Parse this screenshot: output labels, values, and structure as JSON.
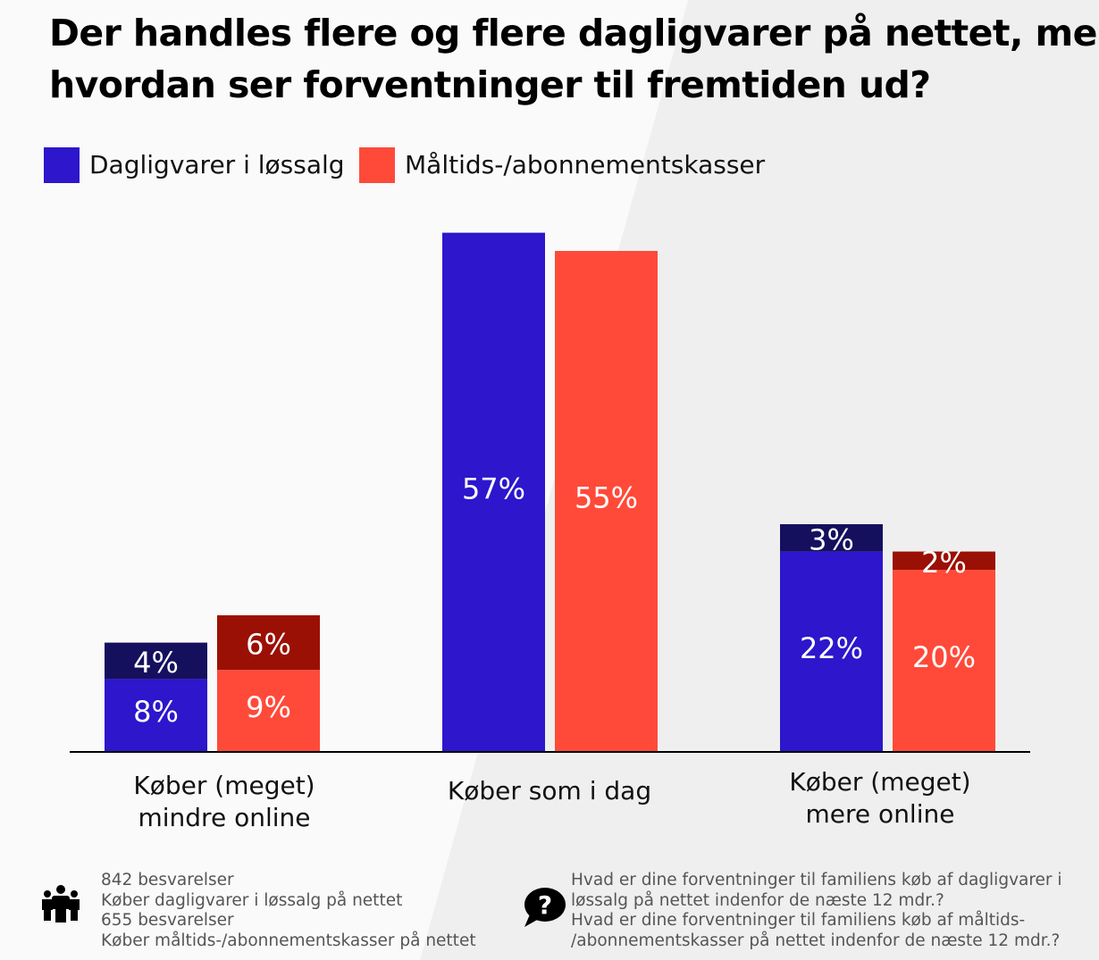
{
  "title": {
    "line1": "Der handles flere og flere dagligvarer på nettet, men",
    "line2": "hvordan ser forventninger til fremtiden ud?"
  },
  "legend": [
    {
      "label": "Dagligvarer i løssalg",
      "color": "#2d16cc"
    },
    {
      "label": "Måltids-/abonnementskasser",
      "color": "#ff4a3a"
    }
  ],
  "chart_data": {
    "type": "bar",
    "stacked": true,
    "unit": "%",
    "ylim": [
      0,
      60
    ],
    "categories": [
      {
        "line1": "Køber (meget)",
        "line2": "mindre online"
      },
      {
        "line1": "Køber som i dag",
        "line2": ""
      },
      {
        "line1": "Køber (meget)",
        "line2": "mere online"
      }
    ],
    "series": [
      {
        "name": "Dagligvarer i løssalg",
        "color": "#2d16cc",
        "accent_color": "#14105e",
        "base": [
          8,
          57,
          22
        ],
        "top": [
          4,
          null,
          3
        ]
      },
      {
        "name": "Måltids-/abonnementskasser",
        "color": "#ff4a3a",
        "accent_color": "#9b1004",
        "base": [
          9,
          55,
          20
        ],
        "top": [
          6,
          null,
          2
        ]
      }
    ]
  },
  "footer": {
    "left_icon": "people-icon",
    "left_lines": [
      "842 besvarelser",
      "Køber dagligvarer i løssalg på nettet",
      "655 besvarelser",
      "Køber måltids-/abonnementskasser på nettet"
    ],
    "right_icon": "question-speech-bubble-icon",
    "right_lines": [
      "Hvad er dine forventninger til familiens køb af dagligvarer i",
      "løssalg på nettet indenfor de næste 12 mdr.?",
      "Hvad er dine forventninger til familiens køb af måltids-",
      "/abonnementskasser på nettet indenfor de næste 12 mdr.?"
    ]
  }
}
